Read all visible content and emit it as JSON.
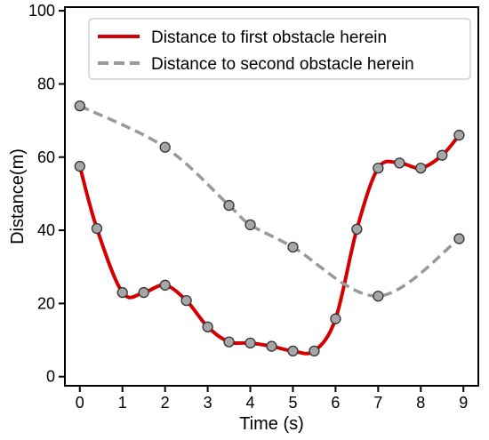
{
  "chart_data": {
    "type": "line",
    "xlabel": "Time (s)",
    "ylabel": "Distance(m)",
    "xlim": [
      -0.35,
      9.35
    ],
    "ylim": [
      -2.5,
      101
    ],
    "xticks": [
      0,
      1,
      2,
      3,
      4,
      5,
      6,
      7,
      8,
      9
    ],
    "yticks": [
      0,
      20,
      40,
      60,
      80,
      100
    ],
    "grid": false,
    "legend_position": "top-right",
    "series": [
      {
        "name": "Distance to first obstacle herein",
        "color": "#d40000",
        "line_style": "solid",
        "x": [
          0,
          0.4,
          1,
          1.5,
          2,
          2.5,
          3,
          3.5,
          4,
          4.5,
          5,
          5.5,
          6,
          6.5,
          7,
          7.5,
          8,
          8.5,
          8.9
        ],
        "y": [
          57.5,
          40.5,
          23,
          23,
          25,
          20.8,
          13.6,
          9.5,
          9.2,
          8.3,
          7,
          7,
          15.8,
          40.3,
          57,
          58.4,
          57,
          60.5,
          66
        ]
      },
      {
        "name": "Distance to second obstacle herein",
        "color": "#999999",
        "line_style": "dashed",
        "x": [
          0,
          2,
          3.5,
          4,
          5,
          7,
          8.9
        ],
        "y": [
          74,
          62.7,
          46.8,
          41.5,
          35.4,
          22,
          37.7
        ]
      }
    ]
  }
}
